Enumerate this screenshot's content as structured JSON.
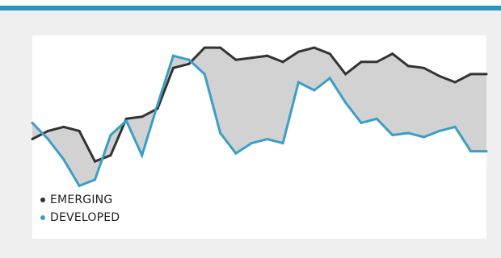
{
  "colors": {
    "accent": "#2b95bd",
    "emerging": "#333333",
    "developed": "#3a9ec5",
    "fill": "#d3d2d3",
    "card_bg": "#efefef"
  },
  "chart_data": {
    "type": "line",
    "title": "",
    "xlabel": "",
    "ylabel": "",
    "x": [
      1,
      2,
      3,
      4,
      5,
      6,
      7,
      8,
      9,
      10,
      11,
      12,
      13,
      14,
      15,
      16,
      17,
      18,
      19,
      20,
      21,
      22,
      23,
      24,
      25,
      26,
      27,
      28,
      29,
      30
    ],
    "ylim": [
      0,
      100
    ],
    "grid": false,
    "axes_visible": false,
    "fill_between_series": true,
    "legend_placement": "bottom-left",
    "series": [
      {
        "name": "EMERGING",
        "color": "#333333",
        "values": [
          49,
          53,
          55,
          53,
          38,
          41,
          59,
          60,
          64,
          84,
          86,
          94,
          94,
          88,
          89,
          90,
          87,
          92,
          94,
          91,
          81,
          87,
          87,
          91,
          85,
          84,
          80,
          77,
          81,
          81
        ]
      },
      {
        "name": "DEVELOPED",
        "color": "#3a9ec5",
        "values": [
          57,
          49,
          39,
          26,
          29,
          51,
          58,
          41,
          66,
          90,
          88,
          81,
          52,
          42,
          47,
          49,
          47,
          77,
          73,
          79,
          67,
          57,
          59,
          51,
          52,
          50,
          53,
          55,
          43,
          43
        ]
      }
    ]
  }
}
